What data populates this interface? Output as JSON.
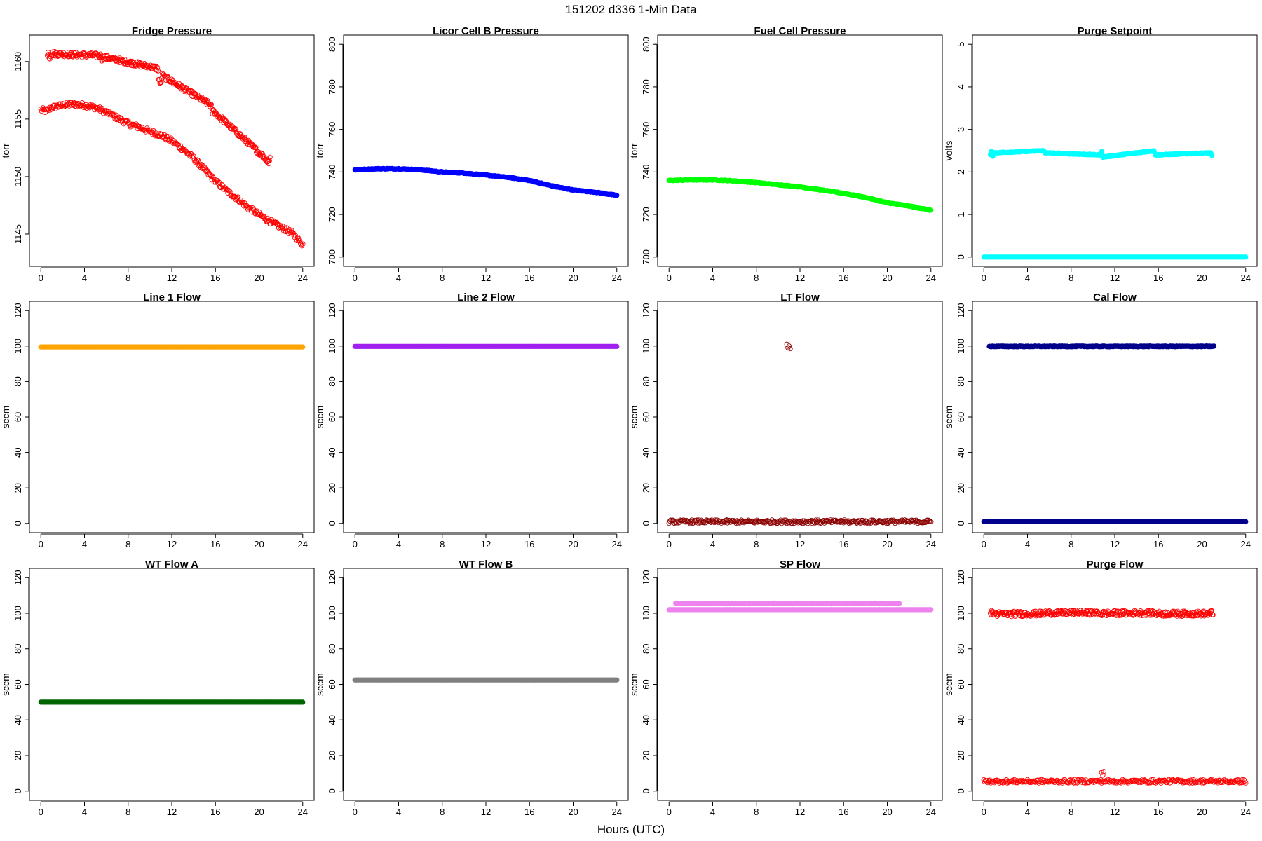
{
  "figure": {
    "title": "151202   d336   1-Min Data",
    "xlabel": "Hours (UTC)"
  },
  "chart_data": [
    {
      "type": "scatter",
      "title": "Fridge Pressure",
      "ylabel": "torr",
      "xlim": [
        0,
        24
      ],
      "ylim": [
        1143,
        1161.5
      ],
      "xticks": [
        0,
        4,
        8,
        12,
        16,
        20,
        24
      ],
      "yticks": [
        1145,
        1150,
        1155,
        1160
      ],
      "color": "#ff0000",
      "marker": "open-circle",
      "series": [
        {
          "x": [
            0.0,
            0.5,
            1.0,
            2.0,
            3.0,
            4.0,
            5.0,
            6.0,
            7.0,
            8.0,
            9.0,
            10.0,
            11.0,
            12.0,
            13.0,
            14.0,
            15.0,
            16.0,
            17.0,
            18.0,
            19.0,
            20.0,
            21.0,
            22.0,
            23.0,
            24.0
          ],
          "y": [
            1155.8,
            1155.7,
            1156.0,
            1156.2,
            1156.3,
            1156.2,
            1156.0,
            1155.6,
            1155.1,
            1154.6,
            1154.3,
            1153.9,
            1153.6,
            1153.1,
            1152.4,
            1151.6,
            1150.6,
            1149.6,
            1148.8,
            1148.1,
            1147.3,
            1146.7,
            1146.1,
            1145.6,
            1145.1,
            1144.1
          ]
        },
        {
          "x": [
            0.6,
            0.7,
            0.8,
            0.9,
            5.5,
            5.6,
            5.7,
            10.7,
            10.8,
            10.9,
            11.0,
            11.1,
            15.6,
            15.7,
            15.8,
            20.8,
            20.9,
            21.0
          ],
          "y": [
            1160.5,
            1160.9,
            1160.2,
            1160.7,
            1160.5,
            1160.2,
            1160.4,
            1159.4,
            1158.6,
            1158.2,
            1157.9,
            1158.8,
            1156.2,
            1155.5,
            1155.7,
            1151.4,
            1151.2,
            1151.6
          ]
        }
      ]
    },
    {
      "type": "scatter",
      "title": "Licor Cell B Pressure",
      "ylabel": "torr",
      "xlim": [
        0,
        24
      ],
      "ylim": [
        700,
        800
      ],
      "xticks": [
        0,
        4,
        8,
        12,
        16,
        20,
        24
      ],
      "yticks": [
        700,
        720,
        740,
        760,
        780,
        800
      ],
      "color": "#0000ff",
      "marker": "filled",
      "series": [
        {
          "x": [
            0,
            2,
            4,
            6,
            8,
            10,
            12,
            14,
            16,
            18,
            20,
            22,
            24
          ],
          "y": [
            741.0,
            741.5,
            741.5,
            741.0,
            740.0,
            739.5,
            738.5,
            737.5,
            736.0,
            733.5,
            731.5,
            730.5,
            729.0
          ]
        }
      ]
    },
    {
      "type": "scatter",
      "title": "Fuel Cell Pressure",
      "ylabel": "torr",
      "xlim": [
        0,
        24
      ],
      "ylim": [
        700,
        800
      ],
      "xticks": [
        0,
        4,
        8,
        12,
        16,
        20,
        24
      ],
      "yticks": [
        700,
        720,
        740,
        760,
        780,
        800
      ],
      "color": "#00ff00",
      "marker": "filled",
      "series": [
        {
          "x": [
            0,
            2,
            4,
            6,
            8,
            10,
            12,
            14,
            16,
            18,
            20,
            22,
            24
          ],
          "y": [
            736.0,
            736.3,
            736.3,
            735.8,
            735.0,
            734.0,
            733.0,
            731.5,
            730.0,
            728.0,
            725.5,
            724.0,
            722.0
          ]
        }
      ]
    },
    {
      "type": "scatter",
      "title": "Purge Setpoint",
      "ylabel": "volts",
      "xlim": [
        0,
        24
      ],
      "ylim": [
        0,
        5
      ],
      "xticks": [
        0,
        4,
        8,
        12,
        16,
        20,
        24
      ],
      "yticks": [
        0,
        1,
        2,
        3,
        4,
        5
      ],
      "color": "#00ffff",
      "marker": "filled",
      "series": [
        {
          "x": [
            0,
            24
          ],
          "y": [
            0,
            0
          ]
        },
        {
          "x": [
            0.6,
            0.7,
            0.8,
            0.9,
            5.5,
            5.6,
            10.7,
            10.8,
            10.9,
            15.6,
            15.7,
            20.8,
            20.9
          ],
          "y": [
            2.4,
            2.5,
            2.35,
            2.45,
            2.5,
            2.45,
            2.4,
            2.5,
            2.35,
            2.5,
            2.4,
            2.45,
            2.38
          ]
        }
      ]
    },
    {
      "type": "scatter",
      "title": "Line 1 Flow",
      "ylabel": "sccm",
      "xlim": [
        0,
        24
      ],
      "ylim": [
        0,
        120
      ],
      "xticks": [
        0,
        4,
        8,
        12,
        16,
        20,
        24
      ],
      "yticks": [
        0,
        20,
        40,
        60,
        80,
        100,
        120
      ],
      "color": "#ffa500",
      "marker": "filled",
      "series": [
        {
          "x": [
            0,
            24
          ],
          "y": [
            99.5,
            99.5
          ]
        }
      ]
    },
    {
      "type": "scatter",
      "title": "Line 2 Flow",
      "ylabel": "sccm",
      "xlim": [
        0,
        24
      ],
      "ylim": [
        0,
        120
      ],
      "xticks": [
        0,
        4,
        8,
        12,
        16,
        20,
        24
      ],
      "yticks": [
        0,
        20,
        40,
        60,
        80,
        100,
        120
      ],
      "color": "#a020f0",
      "marker": "filled",
      "series": [
        {
          "x": [
            0,
            24
          ],
          "y": [
            99.8,
            99.8
          ]
        }
      ]
    },
    {
      "type": "scatter",
      "title": "LT Flow",
      "ylabel": "sccm",
      "xlim": [
        0,
        24
      ],
      "ylim": [
        0,
        120
      ],
      "xticks": [
        0,
        4,
        8,
        12,
        16,
        20,
        24
      ],
      "yticks": [
        0,
        20,
        40,
        60,
        80,
        100,
        120
      ],
      "color": "#8b0000",
      "marker": "open-circle",
      "series": [
        {
          "x": [
            0,
            24
          ],
          "y": [
            1,
            1
          ]
        },
        {
          "x": [
            10.8,
            10.9,
            11.0,
            11.1
          ],
          "y": [
            101,
            99,
            100,
            98.5
          ]
        }
      ]
    },
    {
      "type": "scatter",
      "title": "Cal Flow",
      "ylabel": "sccm",
      "xlim": [
        0,
        24
      ],
      "ylim": [
        0,
        120
      ],
      "xticks": [
        0,
        4,
        8,
        12,
        16,
        20,
        24
      ],
      "yticks": [
        0,
        20,
        40,
        60,
        80,
        100,
        120
      ],
      "color": "#00008b",
      "marker": "filled",
      "series": [
        {
          "x": [
            0,
            24
          ],
          "y": [
            1,
            1
          ]
        },
        {
          "x": [
            0.5,
            0.7,
            0.9,
            5.5,
            5.7,
            10.7,
            10.9,
            11.2,
            15.6,
            15.8,
            20.7,
            20.9,
            21.1
          ],
          "y": [
            99.8,
            99.8,
            99.8,
            99.8,
            99.8,
            99.8,
            99.8,
            99.8,
            99.8,
            99.8,
            99.8,
            99.8,
            99.8
          ]
        }
      ]
    },
    {
      "type": "scatter",
      "title": "WT Flow A",
      "ylabel": "sccm",
      "xlim": [
        0,
        24
      ],
      "ylim": [
        0,
        120
      ],
      "xticks": [
        0,
        4,
        8,
        12,
        16,
        20,
        24
      ],
      "yticks": [
        0,
        20,
        40,
        60,
        80,
        100,
        120
      ],
      "color": "#006400",
      "marker": "filled",
      "series": [
        {
          "x": [
            0,
            24
          ],
          "y": [
            50,
            50
          ]
        }
      ]
    },
    {
      "type": "scatter",
      "title": "WT Flow B",
      "ylabel": "sccm",
      "xlim": [
        0,
        24
      ],
      "ylim": [
        0,
        120
      ],
      "xticks": [
        0,
        4,
        8,
        12,
        16,
        20,
        24
      ],
      "yticks": [
        0,
        20,
        40,
        60,
        80,
        100,
        120
      ],
      "color": "#808080",
      "marker": "filled",
      "series": [
        {
          "x": [
            0,
            24
          ],
          "y": [
            62.5,
            62.5
          ]
        }
      ]
    },
    {
      "type": "scatter",
      "title": "SP Flow",
      "ylabel": "sccm",
      "xlim": [
        0,
        24
      ],
      "ylim": [
        0,
        120
      ],
      "xticks": [
        0,
        4,
        8,
        12,
        16,
        20,
        24
      ],
      "yticks": [
        0,
        20,
        40,
        60,
        80,
        100,
        120
      ],
      "color": "#ee82ee",
      "marker": "filled",
      "series": [
        {
          "x": [
            0,
            24
          ],
          "y": [
            102,
            102
          ]
        },
        {
          "x": [
            0.6,
            0.8,
            1.0,
            5.6,
            5.8,
            10.6,
            10.8,
            11.0,
            11.2,
            15.6,
            15.8,
            20.7,
            20.9,
            21.1
          ],
          "y": [
            105.5,
            105.5,
            105.5,
            105.5,
            105.5,
            105.5,
            105.5,
            105.5,
            105.5,
            105.5,
            105.5,
            105.5,
            105.5,
            105.5
          ]
        }
      ]
    },
    {
      "type": "scatter",
      "title": "Purge Flow",
      "ylabel": "sccm",
      "xlim": [
        0,
        24
      ],
      "ylim": [
        0,
        120
      ],
      "xticks": [
        0,
        4,
        8,
        12,
        16,
        20,
        24
      ],
      "yticks": [
        0,
        20,
        40,
        60,
        80,
        100,
        120
      ],
      "color": "#ff0000",
      "marker": "open-circle",
      "series": [
        {
          "x": [
            0,
            24
          ],
          "y": [
            5.5,
            5.5
          ]
        },
        {
          "x": [
            10.8,
            10.9,
            11.0
          ],
          "y": [
            10.5,
            9.0,
            11.0
          ]
        },
        {
          "x": [
            0.6,
            0.8,
            0.9,
            5.5,
            5.6,
            10.6,
            10.8,
            11.0,
            15.6,
            15.7,
            20.7,
            20.9,
            21.0
          ],
          "y": [
            99.8,
            100.5,
            99.5,
            99.8,
            100.2,
            100.3,
            99.6,
            99.9,
            100.2,
            99.7,
            99.8,
            100.3,
            99.5
          ]
        }
      ]
    }
  ]
}
